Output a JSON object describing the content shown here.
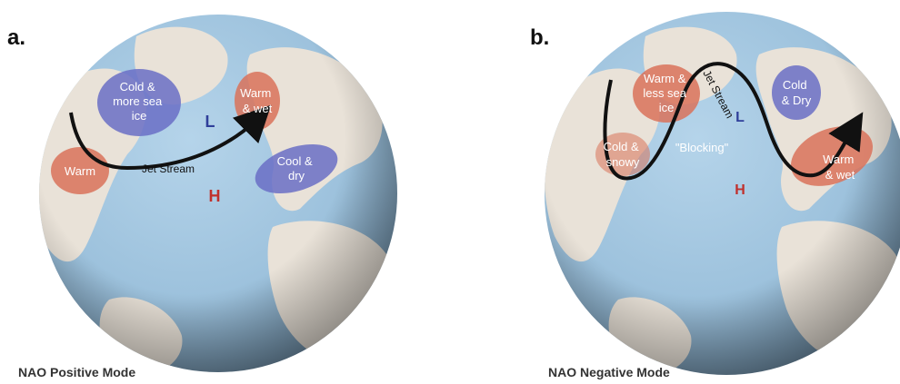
{
  "panel_a": {
    "label": "a.",
    "caption": "NAO Positive Mode",
    "regions": {
      "cold_ice": [
        "Cold &",
        "more sea",
        "ice"
      ],
      "warm_wet": [
        "Warm",
        "& wet"
      ],
      "warm": [
        "Warm"
      ],
      "cool_dry": [
        "Cool &",
        "dry"
      ]
    },
    "low": "L",
    "high": "H",
    "jet_stream": "Jet Stream"
  },
  "panel_b": {
    "label": "b.",
    "caption": "NAO Negative Mode",
    "regions": {
      "warm_less_ice": [
        "Warm &",
        "less sea",
        "ice"
      ],
      "cold_dry": [
        "Cold",
        "& Dry"
      ],
      "cold_snowy": [
        "Cold &",
        "snowy"
      ],
      "warm_wet": [
        "Warm",
        "& wet"
      ]
    },
    "blocking": "\"Blocking\"",
    "low": "L",
    "high": "H",
    "jet_stream": "Jet Stream"
  },
  "colors": {
    "ocean": "#9fc4df",
    "land": "#e9e2d8",
    "warm_blob": "#d9725a",
    "cold_blob": "#6a6fc6",
    "low_color": "#2f3f9a",
    "high_color": "#c0302c"
  }
}
